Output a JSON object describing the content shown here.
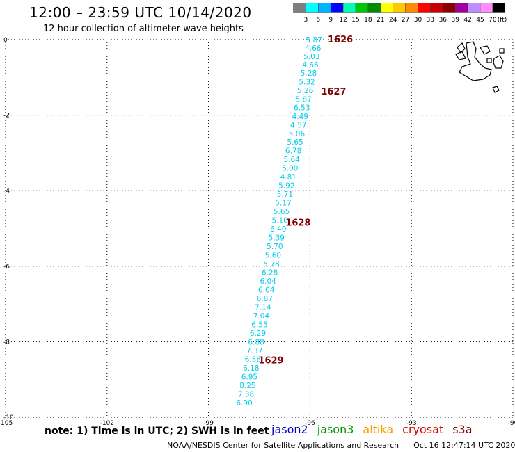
{
  "header": {
    "title": "12:00 – 23:59 UTC 10/14/2020",
    "subtitle": "12 hour collection of altimeter wave heights"
  },
  "legend": {
    "colors": [
      "#7f7f7f",
      "#00ffff",
      "#00b4ff",
      "#0000ff",
      "#00ffb4",
      "#00c800",
      "#008c00",
      "#ffff00",
      "#ffc800",
      "#ff8c00",
      "#ff0000",
      "#c80000",
      "#8c0000",
      "#a000a0",
      "#c08cff",
      "#ff8cff",
      "#000000"
    ],
    "labels": [
      "3",
      "6",
      "9",
      "12",
      "15",
      "18",
      "21",
      "24",
      "27",
      "30",
      "33",
      "36",
      "39",
      "42",
      "45",
      "70"
    ],
    "unit": "(ft)"
  },
  "map": {
    "lon_ticks": [
      "-105",
      "-102",
      "-99",
      "-96",
      "-93",
      "-90"
    ],
    "lat_ticks": [
      "0",
      "-2",
      "-4",
      "-6",
      "-8",
      "-10"
    ],
    "lon_range": [
      -105,
      -90
    ],
    "lat_range": [
      -10,
      0
    ],
    "grid": "dotted",
    "track_color": "#00ccee",
    "time_color": "#800000",
    "track": [
      {
        "lon": -95.88,
        "lat": 0.0,
        "v": "5.87"
      },
      {
        "lon": -95.91,
        "lat": -0.22,
        "v": "4.66"
      },
      {
        "lon": -95.95,
        "lat": -0.44,
        "v": "5.03"
      },
      {
        "lon": -95.99,
        "lat": -0.66,
        "v": "4.66"
      },
      {
        "lon": -96.04,
        "lat": -0.88,
        "v": "5.28"
      },
      {
        "lon": -96.09,
        "lat": -1.11,
        "v": "5.32"
      },
      {
        "lon": -96.14,
        "lat": -1.34,
        "v": "5.26"
      },
      {
        "lon": -96.19,
        "lat": -1.57,
        "v": "5.87"
      },
      {
        "lon": -96.24,
        "lat": -1.8,
        "v": "6.53"
      },
      {
        "lon": -96.29,
        "lat": -2.03,
        "v": "4.49"
      },
      {
        "lon": -96.34,
        "lat": -2.26,
        "v": "4.57"
      },
      {
        "lon": -96.39,
        "lat": -2.49,
        "v": "5.06"
      },
      {
        "lon": -96.44,
        "lat": -2.71,
        "v": "5.65"
      },
      {
        "lon": -96.49,
        "lat": -2.94,
        "v": "6.78"
      },
      {
        "lon": -96.54,
        "lat": -3.17,
        "v": "5.64"
      },
      {
        "lon": -96.59,
        "lat": -3.4,
        "v": "5.00"
      },
      {
        "lon": -96.64,
        "lat": -3.63,
        "v": "4.81"
      },
      {
        "lon": -96.69,
        "lat": -3.86,
        "v": "5.92"
      },
      {
        "lon": -96.74,
        "lat": -4.09,
        "v": "5.71"
      },
      {
        "lon": -96.79,
        "lat": -4.32,
        "v": "5.17"
      },
      {
        "lon": -96.84,
        "lat": -4.55,
        "v": "5.65"
      },
      {
        "lon": -96.89,
        "lat": -4.78,
        "v": "5.10"
      },
      {
        "lon": -96.94,
        "lat": -5.01,
        "v": "6.40"
      },
      {
        "lon": -96.99,
        "lat": -5.24,
        "v": "5.39"
      },
      {
        "lon": -97.04,
        "lat": -5.47,
        "v": "5.70"
      },
      {
        "lon": -97.09,
        "lat": -5.7,
        "v": "5.60"
      },
      {
        "lon": -97.14,
        "lat": -5.93,
        "v": "5.78"
      },
      {
        "lon": -97.19,
        "lat": -6.16,
        "v": "6.28"
      },
      {
        "lon": -97.24,
        "lat": -6.39,
        "v": "6.04"
      },
      {
        "lon": -97.29,
        "lat": -6.62,
        "v": "6.04"
      },
      {
        "lon": -97.34,
        "lat": -6.85,
        "v": "6.87"
      },
      {
        "lon": -97.39,
        "lat": -7.08,
        "v": "7.14"
      },
      {
        "lon": -97.44,
        "lat": -7.31,
        "v": "7.04"
      },
      {
        "lon": -97.49,
        "lat": -7.54,
        "v": "6.55"
      },
      {
        "lon": -97.54,
        "lat": -7.77,
        "v": "6.29"
      },
      {
        "lon": -97.59,
        "lat": -8.0,
        "v": "6.88"
      },
      {
        "lon": -97.64,
        "lat": -8.23,
        "v": "7.37"
      },
      {
        "lon": -97.69,
        "lat": -8.46,
        "v": "6.56"
      },
      {
        "lon": -97.74,
        "lat": -8.69,
        "v": "6.18"
      },
      {
        "lon": -97.79,
        "lat": -8.92,
        "v": "6.95"
      },
      {
        "lon": -97.84,
        "lat": -9.15,
        "v": "8.25"
      },
      {
        "lon": -97.89,
        "lat": -9.38,
        "v": "7.38"
      },
      {
        "lon": -97.94,
        "lat": -9.61,
        "v": "6.90"
      }
    ],
    "times": [
      {
        "lon": -95.1,
        "lat": 0.0,
        "t": "1626"
      },
      {
        "lon": -95.3,
        "lat": -1.38,
        "t": "1627"
      },
      {
        "lon": -96.35,
        "lat": -4.85,
        "t": "1628"
      },
      {
        "lon": -97.15,
        "lat": -8.5,
        "t": "1629"
      }
    ]
  },
  "notes": {
    "text": "note:  1) Time is in UTC;  2) SWH is in feet"
  },
  "satellites": [
    {
      "name": "jason2",
      "color": "#0000cc"
    },
    {
      "name": "jason3",
      "color": "#009900"
    },
    {
      "name": "altika",
      "color": "#ff9900"
    },
    {
      "name": "cryosat",
      "color": "#dd0000"
    },
    {
      "name": "s3a",
      "color": "#800000"
    }
  ],
  "footer": {
    "credit": "NOAA/NESDIS Center for Satellite Applications and Research",
    "timestamp": "Oct 16 12:47:14 UTC 2020"
  }
}
